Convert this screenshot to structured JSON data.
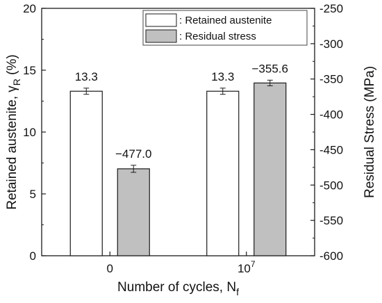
{
  "chart_data": {
    "type": "bar",
    "categories": [
      "0",
      "10^7"
    ],
    "category_labels": [
      {
        "base": "0",
        "sup": ""
      },
      {
        "base": "10",
        "sup": "7"
      }
    ],
    "series": [
      {
        "name": "Retained austenite",
        "legend_label": ": Retained austenite",
        "axis": "left",
        "values": [
          13.3,
          13.3
        ],
        "errors": [
          0.25,
          0.25
        ],
        "labels": [
          "13.3",
          "13.3"
        ],
        "fill": "#ffffff",
        "stroke": "#1a1a1a"
      },
      {
        "name": "Residual stress",
        "legend_label": ": Residual stress",
        "axis": "right",
        "values": [
          -477.0,
          -355.6
        ],
        "errors": [
          5,
          4
        ],
        "labels": [
          "−477.0",
          "−355.6"
        ],
        "fill": "#c0c0c0",
        "stroke": "#1a1a1a"
      }
    ],
    "y_left": {
      "title": {
        "base": "Retained austenite, γ",
        "sub": "R",
        "rest": " (%)"
      },
      "lim": [
        0,
        20
      ],
      "ticks": [
        0,
        5,
        10,
        15,
        20
      ],
      "tick_labels": [
        "0",
        "5",
        "10",
        "15",
        "20"
      ]
    },
    "y_right": {
      "title": "Residual Stress (MPa)",
      "lim": [
        -600,
        -250
      ],
      "ticks": [
        -600,
        -550,
        -500,
        -450,
        -400,
        -350,
        -300,
        -250
      ],
      "tick_labels": [
        "-600",
        "-550",
        "-500",
        "-450",
        "-400",
        "-350",
        "-300",
        "-250"
      ]
    },
    "x_axis": {
      "title": {
        "base": "Number of cycles, N",
        "sub": "f"
      }
    },
    "grid": false,
    "legend_position": "top-right"
  }
}
